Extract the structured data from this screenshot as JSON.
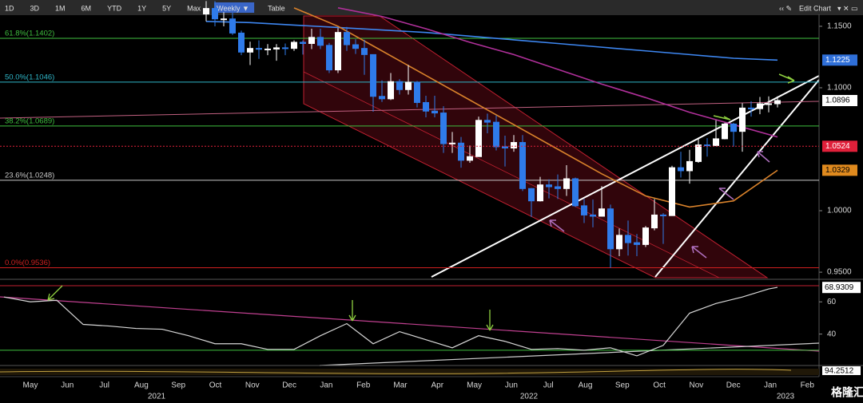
{
  "chart_data": {
    "type": "candlestick",
    "toolbar": {
      "periods": [
        "1D",
        "3D",
        "1M",
        "6M",
        "YTD",
        "1Y",
        "5Y",
        "Max"
      ],
      "frequency": "Weekly ▼",
      "table": "Table",
      "edit": "Edit Chart"
    },
    "x_axis": {
      "months": [
        "May",
        "Jun",
        "Jul",
        "Aug",
        "Sep",
        "Oct",
        "Nov",
        "Dec",
        "Jan",
        "Feb",
        "Mar",
        "Apr",
        "May",
        "Jun",
        "Jul",
        "Aug",
        "Sep",
        "Oct",
        "Nov",
        "Dec",
        "Jan",
        "Feb"
      ],
      "years": [
        "2021",
        "2022",
        "2023"
      ]
    },
    "up_color": "#ffffff",
    "down_color": "#2f7bea",
    "open": [
      1.16,
      1.1645,
      1.156,
      1.156,
      1.1445,
      1.129,
      1.132,
      1.1315,
      1.1315,
      1.1325,
      1.132,
      1.137,
      1.136,
      1.141,
      1.1345,
      1.1145,
      1.145,
      1.135,
      1.132,
      1.127,
      1.093,
      1.091,
      1.105,
      1.0985,
      1.1045,
      1.088,
      1.081,
      1.0795,
      1.0545,
      1.055,
      1.041,
      1.044,
      1.0735,
      1.072,
      1.052,
      1.051,
      1.0555,
      1.018,
      1.008,
      1.021,
      1.0195,
      1.018,
      1.026,
      1.004,
      0.9965,
      0.9955,
      1.0015,
      0.969,
      0.98,
      0.974,
      0.9725,
      0.986,
      0.9965,
      0.996,
      1.035,
      1.0325,
      1.04,
      1.0535,
      1.053,
      1.0585,
      1.0705,
      1.0645,
      1.0835,
      1.083,
      1.087,
      1.087
    ],
    "high": [
      1.1705,
      1.1705,
      1.1615,
      1.161,
      1.1465,
      1.1375,
      1.1385,
      1.1355,
      1.1355,
      1.136,
      1.1385,
      1.1385,
      1.148,
      1.148,
      1.1365,
      1.1485,
      1.1495,
      1.1395,
      1.139,
      1.127,
      1.106,
      1.112,
      1.107,
      1.1185,
      1.1055,
      1.0935,
      1.0935,
      1.085,
      1.064,
      1.06,
      1.053,
      1.0765,
      1.079,
      1.0775,
      1.061,
      1.0615,
      1.0615,
      1.0185,
      1.0275,
      1.0255,
      1.0295,
      1.037,
      1.027,
      1.0095,
      1.009,
      1.02,
      1.005,
      0.9855,
      0.992,
      0.981,
      0.9875,
      1.0095,
      0.998,
      1.0365,
      1.048,
      1.0495,
      1.0595,
      1.059,
      1.0735,
      1.0715,
      1.0715,
      1.0875,
      1.089,
      1.0925,
      1.093,
      1.093
    ],
    "low": [
      1.154,
      1.15,
      1.15,
      1.143,
      1.1265,
      1.1185,
      1.1235,
      1.1265,
      1.122,
      1.1265,
      1.13,
      1.127,
      1.1315,
      1.1315,
      1.112,
      1.112,
      1.13,
      1.1275,
      1.1105,
      1.0805,
      1.0885,
      1.09,
      1.0945,
      1.0945,
      1.084,
      1.076,
      1.076,
      1.047,
      1.047,
      1.035,
      1.039,
      1.044,
      1.063,
      1.049,
      1.036,
      1.048,
      1.016,
      0.995,
      1.0075,
      1.01,
      1.0095,
      1.012,
      1.003,
      0.99,
      0.9865,
      0.9955,
      0.9535,
      0.963,
      0.9635,
      0.963,
      0.9705,
      0.984,
      0.973,
      0.996,
      1.027,
      1.022,
      1.039,
      1.044,
      1.0525,
      1.058,
      1.052,
      1.048,
      1.0765,
      1.0785,
      1.08,
      1.084
    ],
    "close": [
      1.1645,
      1.156,
      1.156,
      1.1445,
      1.129,
      1.132,
      1.1315,
      1.1315,
      1.1325,
      1.132,
      1.137,
      1.136,
      1.141,
      1.1345,
      1.1145,
      1.145,
      1.135,
      1.132,
      1.127,
      1.093,
      1.091,
      1.105,
      1.0985,
      1.1045,
      1.088,
      1.081,
      1.0795,
      1.0545,
      1.055,
      1.041,
      1.044,
      1.0735,
      1.072,
      1.052,
      1.051,
      1.0555,
      1.018,
      1.008,
      1.021,
      1.0195,
      1.018,
      1.026,
      1.004,
      0.9965,
      0.9955,
      1.0015,
      0.969,
      0.98,
      0.974,
      0.9725,
      0.986,
      0.9965,
      0.996,
      1.035,
      1.0325,
      1.04,
      1.0535,
      1.053,
      1.0585,
      1.0705,
      1.0645,
      1.0835,
      1.083,
      1.087,
      1.087,
      1.0896
    ],
    "ylim": [
      0.9455,
      1.1597
    ],
    "yticks": [
      {
        "value": 1.15,
        "label": "1.1500"
      },
      {
        "value": 1.1,
        "label": "1.1000"
      },
      {
        "value": 1.0,
        "label": "1.0000"
      },
      {
        "value": 0.95,
        "label": "0.9500"
      }
    ],
    "moving_averages": [
      {
        "color": "#3d86f0",
        "x": [
          0,
          5,
          10,
          15,
          20,
          25,
          30,
          35,
          40,
          45,
          50,
          55,
          60,
          65
        ],
        "values": [
          1.154,
          1.153,
          1.151,
          1.149,
          1.147,
          1.145,
          1.142,
          1.139,
          1.136,
          1.133,
          1.13,
          1.127,
          1.124,
          1.1225
        ]
      },
      {
        "color": "#b0309a",
        "x": [
          15,
          20,
          25,
          30,
          35,
          40,
          45,
          50,
          55,
          60,
          65
        ],
        "values": [
          1.165,
          1.158,
          1.148,
          1.137,
          1.127,
          1.115,
          1.103,
          1.092,
          1.08,
          1.07,
          1.06
        ]
      },
      {
        "color": "#d9822b",
        "x": [
          10,
          15,
          20,
          25,
          30,
          35,
          40,
          45,
          50,
          55,
          60,
          65
        ],
        "values": [
          1.165,
          1.15,
          1.13,
          1.11,
          1.09,
          1.07,
          1.05,
          1.03,
          1.012,
          1.003,
          1.008,
          1.0329
        ]
      }
    ],
    "fib_levels": [
      {
        "value": 1.1402,
        "label": "61.8%(1.1402)",
        "color": "#3fbf3f"
      },
      {
        "value": 1.1046,
        "label": "50.0%(1.1046)",
        "color": "#2fb7c9"
      },
      {
        "value": 1.0689,
        "label": "38.2%(1.0689)",
        "color": "#3fbf3f"
      },
      {
        "value": 1.0248,
        "label": "23.6%(1.0248)",
        "color": "#c8c8c8"
      },
      {
        "value": 0.9536,
        "label": "0.0%(0.9536)",
        "color": "#d02020"
      }
    ],
    "price_labels": [
      {
        "value": 1.1225,
        "color": "#2f6fd8",
        "text_color": "#ffffff"
      },
      {
        "value": 1.0896,
        "color": "#ffffff",
        "text_color": "#000000"
      },
      {
        "value": 1.0524,
        "color": "#e0203a",
        "text_color": "#ffffff"
      },
      {
        "value": 1.0329,
        "color": "#e08a1e",
        "text_color": "#000000"
      }
    ],
    "rsi": {
      "x": [
        -23,
        -20,
        -17,
        -14,
        -11,
        -8,
        -5,
        -2,
        1,
        4,
        7,
        10,
        13,
        16,
        19,
        22,
        25,
        28,
        31,
        34,
        37,
        40,
        43,
        46,
        49,
        52,
        55,
        58,
        61,
        64,
        65
      ],
      "values": [
        63,
        60,
        61,
        46,
        45,
        43.5,
        43,
        39,
        34,
        34,
        30.5,
        30.5,
        39,
        46.5,
        34,
        41.5,
        36.5,
        31.5,
        39,
        35.5,
        30.5,
        31,
        30,
        31.5,
        26.5,
        33,
        53,
        59,
        63,
        68,
        69
      ],
      "color": "#d8d8d8",
      "ylim": [
        21.5,
        73
      ],
      "yticks": [
        60,
        40
      ],
      "levels": [
        70,
        30
      ],
      "last": 68.9309
    },
    "lower_panel_last": 94.2512,
    "watermark": "格隆汇"
  }
}
